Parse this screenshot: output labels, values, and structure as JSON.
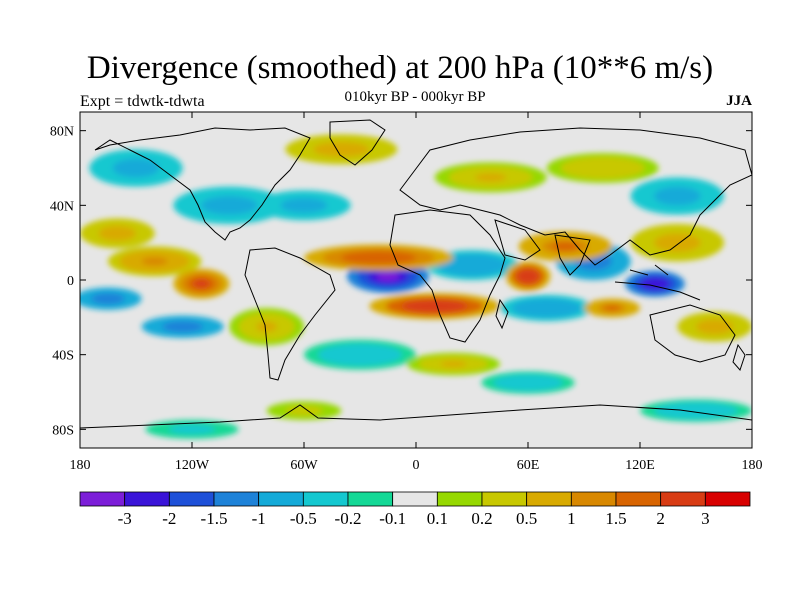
{
  "title": "Divergence (smoothed) at 200 hPa (10**6 m/s)",
  "subtitle": "010kyr BP - 000kyr BP",
  "expt_label": "Expt = tdwtk-tdwta",
  "season": "JJA",
  "map": {
    "lon_range": [
      -180,
      180
    ],
    "lat_range": [
      -90,
      90
    ],
    "x_ticks": [
      {
        "lon": -180,
        "label": "180"
      },
      {
        "lon": -120,
        "label": "120W"
      },
      {
        "lon": -60,
        "label": "60W"
      },
      {
        "lon": 0,
        "label": "0"
      },
      {
        "lon": 60,
        "label": "60E"
      },
      {
        "lon": 120,
        "label": "120E"
      },
      {
        "lon": 180,
        "label": "180"
      }
    ],
    "y_ticks": [
      {
        "lat": 80,
        "label": "80N"
      },
      {
        "lat": 40,
        "label": "40N"
      },
      {
        "lat": 0,
        "label": "0"
      },
      {
        "lat": -40,
        "label": "40S"
      },
      {
        "lat": -80,
        "label": "80S"
      }
    ],
    "background_color": "#e6e6e6",
    "blobs": [
      {
        "lon": -15,
        "lat": 2,
        "rlon": 22,
        "rlat": 9,
        "value": -3.2
      },
      {
        "lon": 128,
        "lat": -2,
        "rlon": 16,
        "rlat": 7,
        "value": -3.0
      },
      {
        "lon": 95,
        "lat": 10,
        "rlon": 20,
        "rlat": 10,
        "value": -1.5
      },
      {
        "lon": 30,
        "lat": 8,
        "rlon": 25,
        "rlat": 8,
        "value": -1.0
      },
      {
        "lon": 70,
        "lat": -15,
        "rlon": 25,
        "rlat": 7,
        "value": -1.0
      },
      {
        "lon": -165,
        "lat": -10,
        "rlon": 18,
        "rlat": 6,
        "value": -1.5
      },
      {
        "lon": -125,
        "lat": -25,
        "rlon": 22,
        "rlat": 6,
        "value": -1.5
      },
      {
        "lon": -100,
        "lat": 40,
        "rlon": 30,
        "rlat": 10,
        "value": -0.8
      },
      {
        "lon": -60,
        "lat": 40,
        "rlon": 25,
        "rlat": 8,
        "value": -0.6
      },
      {
        "lon": -150,
        "lat": 60,
        "rlon": 25,
        "rlat": 10,
        "value": -0.8
      },
      {
        "lon": 140,
        "lat": 45,
        "rlon": 25,
        "rlat": 10,
        "value": -0.6
      },
      {
        "lon": -30,
        "lat": -40,
        "rlon": 30,
        "rlat": 8,
        "value": -0.5
      },
      {
        "lon": 60,
        "lat": -55,
        "rlon": 25,
        "rlat": 6,
        "value": -0.4
      },
      {
        "lon": 150,
        "lat": -70,
        "rlon": 30,
        "rlat": 6,
        "value": -0.4
      },
      {
        "lon": -120,
        "lat": -80,
        "rlon": 25,
        "rlat": 5,
        "value": -0.3
      },
      {
        "lon": -20,
        "lat": 12,
        "rlon": 40,
        "rlat": 7,
        "value": 1.8
      },
      {
        "lon": 10,
        "lat": -14,
        "rlon": 35,
        "rlat": 7,
        "value": 2.5
      },
      {
        "lon": 60,
        "lat": 2,
        "rlon": 12,
        "rlat": 8,
        "value": 2.5
      },
      {
        "lon": 80,
        "lat": 18,
        "rlon": 25,
        "rlat": 8,
        "value": 1.5
      },
      {
        "lon": 105,
        "lat": -15,
        "rlon": 15,
        "rlat": 5,
        "value": 1.5
      },
      {
        "lon": -140,
        "lat": 10,
        "rlon": 25,
        "rlat": 8,
        "value": 1.0
      },
      {
        "lon": -115,
        "lat": -2,
        "rlon": 15,
        "rlat": 8,
        "value": 2.0
      },
      {
        "lon": -160,
        "lat": 25,
        "rlon": 20,
        "rlat": 8,
        "value": 0.8
      },
      {
        "lon": -40,
        "lat": 70,
        "rlon": 30,
        "rlat": 8,
        "value": 0.6
      },
      {
        "lon": 40,
        "lat": 55,
        "rlon": 30,
        "rlat": 8,
        "value": 0.5
      },
      {
        "lon": 140,
        "lat": 20,
        "rlon": 25,
        "rlat": 10,
        "value": 0.6
      },
      {
        "lon": 160,
        "lat": -25,
        "rlon": 20,
        "rlat": 8,
        "value": 0.8
      },
      {
        "lon": -80,
        "lat": -25,
        "rlon": 20,
        "rlat": 10,
        "value": 0.5
      },
      {
        "lon": 20,
        "lat": -45,
        "rlon": 25,
        "rlat": 6,
        "value": 0.5
      },
      {
        "lon": -60,
        "lat": -70,
        "rlon": 20,
        "rlat": 5,
        "value": 0.3
      },
      {
        "lon": 100,
        "lat": 60,
        "rlon": 30,
        "rlat": 8,
        "value": 0.4
      }
    ]
  },
  "colorbar": {
    "colors": [
      "#7c1ed8",
      "#3a14d8",
      "#1e50d8",
      "#1e82d8",
      "#14aad8",
      "#14c8d0",
      "#14d896",
      "#e6e6e6",
      "#96d800",
      "#c8c800",
      "#d8aa00",
      "#d88800",
      "#d86400",
      "#d83c14",
      "#d80000"
    ],
    "labels": [
      "-3",
      "-2",
      "-1.5",
      "-1",
      "-0.5",
      "-0.2",
      "-0.1",
      "0.1",
      "0.2",
      "0.5",
      "1",
      "1.5",
      "2",
      "3"
    ],
    "thresholds": [
      -3,
      -2,
      -1.5,
      -1,
      -0.5,
      -0.2,
      -0.1,
      0.1,
      0.2,
      0.5,
      1,
      1.5,
      2,
      3
    ]
  }
}
